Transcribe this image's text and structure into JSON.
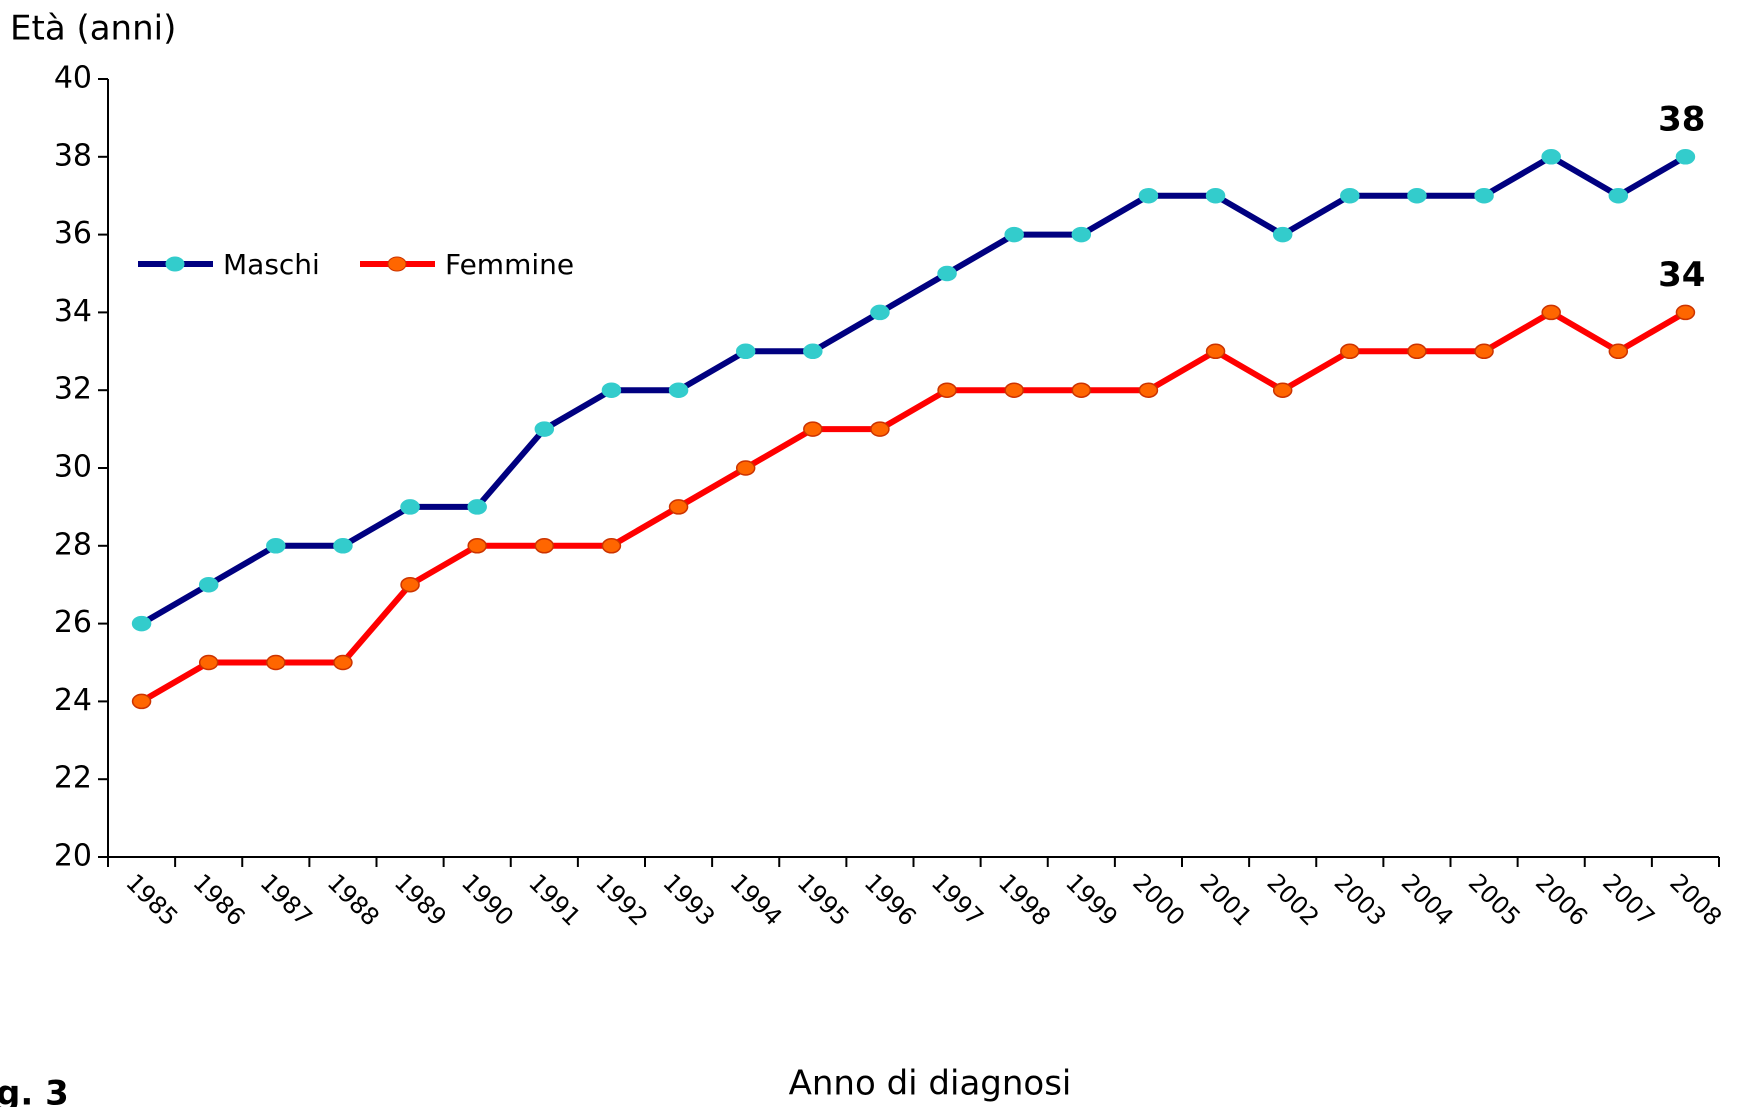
{
  "chart_data": {
    "type": "line",
    "y_axis_label": "Età (anni)",
    "x_axis_label": "Anno di diagnosi",
    "figure_label": "g. 3",
    "categories": [
      "1985",
      "1986",
      "1987",
      "1988",
      "1989",
      "1990",
      "1991",
      "1992",
      "1993",
      "1994",
      "1995",
      "1996",
      "1997",
      "1998",
      "1999",
      "2000",
      "2001",
      "2002",
      "2003",
      "2004",
      "2005",
      "2006",
      "2007",
      "2008"
    ],
    "series": [
      {
        "name": "Maschi",
        "color": "#000080",
        "marker_color": "#33cccc",
        "values": [
          26,
          27,
          28,
          28,
          29,
          29,
          31,
          32,
          32,
          33,
          33,
          34,
          35,
          36,
          36,
          37,
          37,
          36,
          37,
          37,
          37,
          38,
          37,
          38
        ]
      },
      {
        "name": "Femmine",
        "color": "#ff0000",
        "marker_color": "#ff6600",
        "values": [
          24,
          25,
          25,
          25,
          27,
          28,
          28,
          28,
          29,
          30,
          31,
          31,
          32,
          32,
          32,
          32,
          33,
          32,
          33,
          33,
          33,
          34,
          33,
          34
        ]
      }
    ],
    "annotations": [
      "38",
      "34"
    ],
    "ylim": [
      20,
      40
    ],
    "yticks": [
      20,
      22,
      24,
      26,
      28,
      30,
      32,
      34,
      36,
      38,
      40
    ],
    "grid": false,
    "legend": "upper left"
  }
}
